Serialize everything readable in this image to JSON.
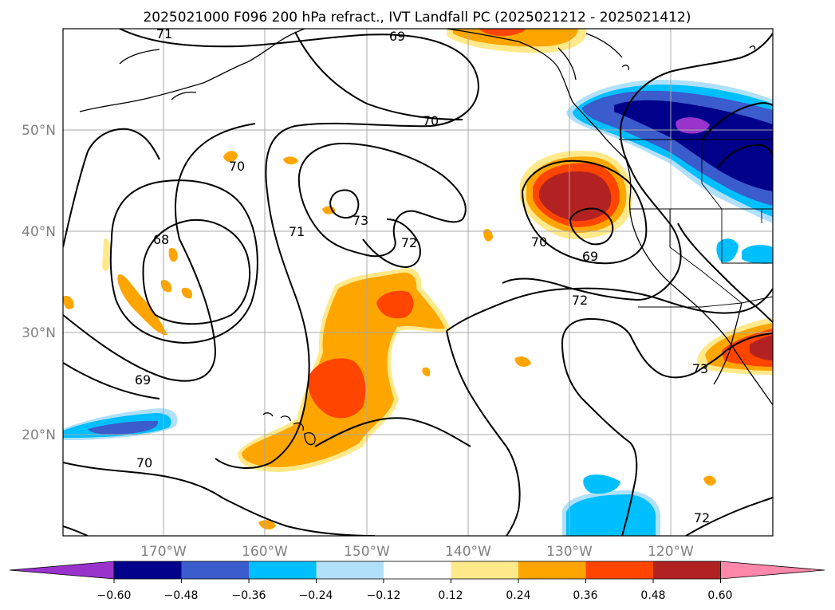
{
  "title": "2025021000 F096 200 hPa refract., IVT Landfall PC (2025021212 - 2025021412)",
  "lon_labels": [
    "170°W",
    "160°W",
    "150°W",
    "140°W",
    "130°W",
    "120°W"
  ],
  "lat_labels": [
    "50°N",
    "40°N",
    "30°N",
    "20°N"
  ],
  "contour_labels": [
    "71",
    "69",
    "70",
    "70",
    "68",
    "71",
    "73",
    "72",
    "70",
    "69",
    "72",
    "69",
    "73",
    "70",
    "72"
  ],
  "colorbar": {
    "colors": [
      "#9933cc",
      "#00008b",
      "#3a5ccc",
      "#00bfff",
      "#b0e0fa",
      "#ffffff",
      "#ffe98a",
      "#ffa500",
      "#ff4500",
      "#b22222",
      "#ff88aa"
    ],
    "tick_labels": [
      "−0.60",
      "−0.48",
      "−0.36",
      "−0.24",
      "−0.12",
      "0.12",
      "0.24",
      "0.36",
      "0.48",
      "0.60"
    ],
    "ticks": [
      -0.6,
      -0.48,
      -0.36,
      -0.24,
      -0.12,
      0.12,
      0.24,
      0.36,
      0.48,
      0.6
    ],
    "extend": "both"
  },
  "map": {
    "projection": "cylindrical",
    "lon_range": [
      -180,
      -110
    ],
    "lat_range": [
      10,
      60
    ],
    "gridlines": true,
    "field_colors": {
      "yellow": "#ffe98a",
      "orange": "#ffa500",
      "red_orange": "#ff4500",
      "dark_red": "#b22222",
      "light_blue": "#b0e0fa",
      "sky_blue": "#00bfff",
      "royal_blue": "#3a5ccc",
      "navy": "#00008b",
      "purple": "#9933cc"
    }
  }
}
